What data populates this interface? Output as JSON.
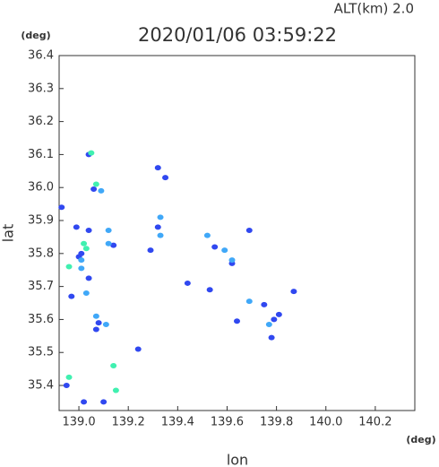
{
  "chart_data": {
    "type": "scatter",
    "title": "2020/01/06 03:59:22",
    "subtitle": "ALT(km) 2.0",
    "x_label": "lon",
    "y_label": "lat",
    "x_unit": "(deg)",
    "y_unit": "(deg)",
    "xlim": [
      138.92,
      140.36
    ],
    "ylim": [
      35.324,
      36.4
    ],
    "xticks": [
      {
        "value": 139,
        "label": "139.0"
      },
      139.2,
      139.4,
      139.6,
      139.8,
      {
        "value": 140,
        "label": "140.0"
      },
      140.2
    ],
    "yticks": [
      35.4,
      35.5,
      35.6,
      35.7,
      35.8,
      35.9,
      {
        "value": 36,
        "label": "36.0"
      },
      36.1,
      36.2,
      36.3,
      36.4
    ],
    "series": [
      {
        "color": "#3048f0",
        "x": [
          139.04,
          139.06,
          138.93,
          138.99,
          139.04,
          139.01,
          139.0,
          139.04,
          139.14,
          139.32,
          139.32,
          139.35,
          139.29,
          139.55,
          139.62,
          139.69,
          139.44,
          139.53,
          138.97,
          139.08,
          139.07,
          139.64,
          139.75,
          139.79,
          139.81,
          139.87,
          139.78,
          139.24,
          138.95,
          139.02,
          139.1
        ],
        "values": [
          36.1,
          35.995,
          35.94,
          35.88,
          35.87,
          35.8,
          35.79,
          35.725,
          35.825,
          35.88,
          36.06,
          36.03,
          35.81,
          35.82,
          35.77,
          35.87,
          35.71,
          35.69,
          35.67,
          35.59,
          35.57,
          35.595,
          35.645,
          35.6,
          35.615,
          35.685,
          35.545,
          35.51,
          35.4,
          35.35,
          35.35
        ]
      },
      {
        "color": "#40a8f8",
        "x": [
          139.09,
          139.01,
          139.01,
          139.12,
          139.12,
          139.33,
          139.33,
          139.52,
          139.59,
          139.62,
          139.03,
          139.07,
          139.11,
          139.69,
          139.77
        ],
        "values": [
          35.99,
          35.78,
          35.755,
          35.87,
          35.83,
          35.855,
          35.91,
          35.855,
          35.81,
          35.78,
          35.68,
          35.61,
          35.585,
          35.655,
          35.585
        ]
      },
      {
        "color": "#40f0b0",
        "x": [
          139.05,
          139.07,
          139.02,
          139.03,
          138.96,
          139.14,
          138.96,
          139.15
        ],
        "values": [
          36.105,
          36.01,
          35.83,
          35.815,
          35.76,
          35.46,
          35.425,
          35.385
        ]
      }
    ]
  }
}
